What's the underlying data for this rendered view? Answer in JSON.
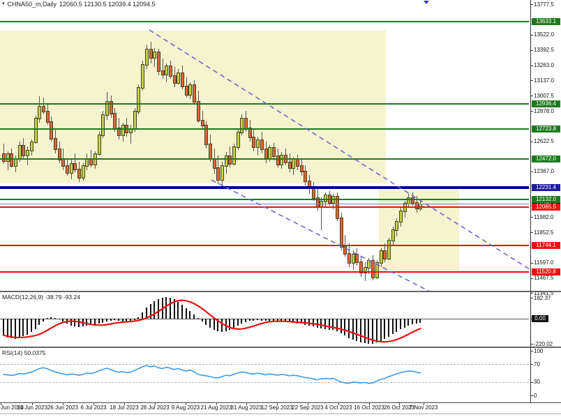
{
  "window": {
    "title_symbol": "CHNA50_m,Daily",
    "title_ohlc": "12060.5 12130.5 12039.4 12094.5"
  },
  "colors": {
    "bull": "#c3d045",
    "bear": "#e06438",
    "candle_border": "#44431f",
    "wick": "#555555",
    "level_green": "#1d7a1d",
    "level_red": "#f01010",
    "level_navy": "#00008b",
    "current_price_line": "#7b7bd4",
    "badge_blue": "#1c1c9e",
    "badge_black": "#111111",
    "zone": "#f6f3cf",
    "trend_dashed": "#6b6bcc",
    "macd_bar": "#111111",
    "macd_signal": "#ee1111",
    "rsi_line": "#3d9be9",
    "axis_line": "#333333",
    "separator": "#666666"
  },
  "chart_data": {
    "type": "candlestick",
    "symbol": "CHNA50_m",
    "timeframe": "Daily",
    "last_bar": {
      "open": 12060.5,
      "high": 12130.5,
      "low": 12039.4,
      "close": 12094.5
    },
    "x_labels": [
      "Jun 2023",
      "14 Jun 2023",
      "26 Jun 2023",
      "6 Jul 2023",
      "18 Jul 2023",
      "28 Jul 2023",
      "9 Aug 2023",
      "21 Aug 2023",
      "31 Aug 2023",
      "12 Sep 2023",
      "22 Sep 2023",
      "4 Oct 2023",
      "16 Oct 2023",
      "26 Oct 2023",
      "7 Nov 2023"
    ],
    "main_pane": {
      "y_ticks": [
        13777.5,
        13522.0,
        13392.5,
        13263.0,
        13137.0,
        13007.5,
        12878.0,
        12622.5,
        12367.0,
        11982.0,
        11852.5,
        11597.0,
        11467.5,
        11341.5
      ],
      "h_lines": [
        {
          "price": 13633.1,
          "kind": "green"
        },
        {
          "price": 12936.4,
          "kind": "green"
        },
        {
          "price": 12723.8,
          "kind": "green"
        },
        {
          "price": 12472.0,
          "kind": "green"
        },
        {
          "price": 12231.4,
          "kind": "navy"
        },
        {
          "price": 12132.0,
          "kind": "green"
        },
        {
          "price": 12094.5,
          "kind": "current"
        },
        {
          "price": 12065.5,
          "kind": "red"
        },
        {
          "price": 11744.1,
          "kind": "red"
        },
        {
          "price": 11520.8,
          "kind": "red"
        }
      ],
      "candles": [
        [
          12520,
          12600,
          12430,
          12460
        ],
        [
          12460,
          12540,
          12380,
          12520
        ],
        [
          12520,
          12560,
          12400,
          12420
        ],
        [
          12420,
          12500,
          12360,
          12480
        ],
        [
          12480,
          12620,
          12450,
          12590
        ],
        [
          12590,
          12650,
          12480,
          12510
        ],
        [
          12510,
          12580,
          12420,
          12550
        ],
        [
          12550,
          12640,
          12500,
          12620
        ],
        [
          12620,
          12840,
          12600,
          12820
        ],
        [
          12820,
          13000,
          12780,
          12920
        ],
        [
          12920,
          12990,
          12850,
          12880
        ],
        [
          12880,
          12940,
          12760,
          12790
        ],
        [
          12790,
          12830,
          12620,
          12650
        ],
        [
          12650,
          12720,
          12520,
          12560
        ],
        [
          12560,
          12620,
          12440,
          12470
        ],
        [
          12470,
          12560,
          12380,
          12420
        ],
        [
          12420,
          12480,
          12330,
          12360
        ],
        [
          12360,
          12470,
          12300,
          12440
        ],
        [
          12440,
          12520,
          12360,
          12390
        ],
        [
          12390,
          12450,
          12280,
          12320
        ],
        [
          12320,
          12440,
          12290,
          12420
        ],
        [
          12420,
          12520,
          12380,
          12480
        ],
        [
          12480,
          12550,
          12400,
          12430
        ],
        [
          12430,
          12540,
          12390,
          12520
        ],
        [
          12520,
          12700,
          12500,
          12680
        ],
        [
          12680,
          12880,
          12650,
          12850
        ],
        [
          12850,
          13040,
          12800,
          12960
        ],
        [
          12960,
          13010,
          12820,
          12860
        ],
        [
          12860,
          12900,
          12700,
          12740
        ],
        [
          12740,
          12820,
          12640,
          12680
        ],
        [
          12680,
          12780,
          12620,
          12760
        ],
        [
          12760,
          12820,
          12660,
          12700
        ],
        [
          12700,
          12760,
          12600,
          12730
        ],
        [
          12730,
          12900,
          12700,
          12880
        ],
        [
          12880,
          13100,
          12850,
          13080
        ],
        [
          13080,
          13300,
          13050,
          13270
        ],
        [
          13270,
          13440,
          13230,
          13400
        ],
        [
          13400,
          13460,
          13280,
          13330
        ],
        [
          13330,
          13410,
          13250,
          13380
        ],
        [
          13380,
          13400,
          13180,
          13220
        ],
        [
          13220,
          13320,
          13150,
          13190
        ],
        [
          13190,
          13280,
          13120,
          13260
        ],
        [
          13260,
          13300,
          13150,
          13180
        ],
        [
          13180,
          13250,
          13080,
          13120
        ],
        [
          13120,
          13230,
          13100,
          13200
        ],
        [
          13200,
          13260,
          13060,
          13090
        ],
        [
          13090,
          13160,
          12990,
          13020
        ],
        [
          13020,
          13120,
          12980,
          13100
        ],
        [
          13100,
          13140,
          12930,
          12960
        ],
        [
          12960,
          13050,
          12780,
          12800
        ],
        [
          12800,
          12880,
          12720,
          12760
        ],
        [
          12760,
          12790,
          12560,
          12600
        ],
        [
          12600,
          12680,
          12450,
          12480
        ],
        [
          12480,
          12560,
          12350,
          12400
        ],
        [
          12400,
          12500,
          12260,
          12300
        ],
        [
          12300,
          12450,
          12240,
          12420
        ],
        [
          12420,
          12530,
          12350,
          12500
        ],
        [
          12500,
          12580,
          12400,
          12440
        ],
        [
          12440,
          12600,
          12420,
          12580
        ],
        [
          12580,
          12720,
          12550,
          12700
        ],
        [
          12700,
          12850,
          12670,
          12820
        ],
        [
          12820,
          12880,
          12700,
          12740
        ],
        [
          12740,
          12800,
          12620,
          12660
        ],
        [
          12660,
          12720,
          12540,
          12580
        ],
        [
          12580,
          12660,
          12500,
          12640
        ],
        [
          12640,
          12700,
          12520,
          12560
        ],
        [
          12560,
          12620,
          12440,
          12480
        ],
        [
          12480,
          12590,
          12450,
          12570
        ],
        [
          12570,
          12610,
          12460,
          12500
        ],
        [
          12500,
          12560,
          12400,
          12430
        ],
        [
          12430,
          12530,
          12390,
          12510
        ],
        [
          12510,
          12560,
          12420,
          12450
        ],
        [
          12450,
          12520,
          12360,
          12400
        ],
        [
          12400,
          12490,
          12340,
          12470
        ],
        [
          12470,
          12510,
          12380,
          12420
        ],
        [
          12420,
          12470,
          12330,
          12370
        ],
        [
          12370,
          12420,
          12250,
          12290
        ],
        [
          12290,
          12340,
          12180,
          12230
        ],
        [
          12230,
          12280,
          12120,
          12150
        ],
        [
          12150,
          12220,
          12040,
          12080
        ],
        [
          12080,
          12150,
          11870,
          12120
        ],
        [
          12120,
          12190,
          12060,
          12170
        ],
        [
          12170,
          12200,
          12080,
          12110
        ],
        [
          12110,
          12180,
          12050,
          12160
        ],
        [
          12160,
          12190,
          11950,
          11980
        ],
        [
          11980,
          12020,
          11700,
          11740
        ],
        [
          11740,
          11830,
          11650,
          11680
        ],
        [
          11680,
          11760,
          11560,
          11600
        ],
        [
          11600,
          11700,
          11540,
          11670
        ],
        [
          11670,
          11720,
          11570,
          11610
        ],
        [
          11610,
          11650,
          11480,
          11520
        ],
        [
          11520,
          11600,
          11443,
          11560
        ],
        [
          11560,
          11640,
          11500,
          11620
        ],
        [
          11620,
          11660,
          11450,
          11480
        ],
        [
          11480,
          11620,
          11460,
          11600
        ],
        [
          11600,
          11720,
          11560,
          11700
        ],
        [
          11700,
          11760,
          11600,
          11640
        ],
        [
          11640,
          11810,
          11620,
          11790
        ],
        [
          11790,
          11900,
          11740,
          11880
        ],
        [
          11880,
          11970,
          11820,
          11950
        ],
        [
          11950,
          12060,
          11900,
          12040
        ],
        [
          12040,
          12120,
          11980,
          12100
        ],
        [
          12100,
          12180,
          12060,
          12150
        ],
        [
          12150,
          12190,
          12080,
          12110
        ],
        [
          12110,
          12160,
          12020,
          12060
        ],
        [
          12060.5,
          12130.5,
          12039.4,
          12094.5
        ]
      ]
    },
    "trend_channel": {
      "style": "dashed",
      "lines": [
        [
          214,
          43,
          762,
          388
        ],
        [
          303,
          258,
          616,
          418
        ]
      ]
    },
    "highlight_zones": [
      [
        0,
        44,
        553,
        219
      ],
      [
        543,
        272,
        115,
        116
      ]
    ],
    "macd_pane": {
      "label": "MACD(12,26,9) -38.79 -93.24",
      "macd": -38.79,
      "signal": -93.24,
      "y_ticks": [
        {
          "value": 182.37,
          "label": "182.37",
          "badge": false
        },
        {
          "value": 0,
          "label": "0.00",
          "badge": true
        },
        {
          "value": -220.02,
          "label": "-220.02",
          "badge": false
        }
      ],
      "values": [
        -145,
        -162,
        -172,
        -175,
        -168,
        -155,
        -138,
        -118,
        -90,
        -55,
        -25,
        5,
        12,
        8,
        -5,
        -25,
        -45,
        -60,
        -68,
        -70,
        -65,
        -58,
        -52,
        -48,
        -42,
        -35,
        -25,
        -18,
        -15,
        -18,
        -22,
        -25,
        -22,
        -12,
        15,
        55,
        95,
        130,
        155,
        172,
        182,
        186,
        180,
        168,
        148,
        122,
        92,
        65,
        38,
        8,
        -25,
        -55,
        -80,
        -98,
        -110,
        -116,
        -112,
        -100,
        -82,
        -62,
        -42,
        -28,
        -20,
        -16,
        -14,
        -16,
        -20,
        -24,
        -27,
        -30,
        -32,
        -31,
        -33,
        -36,
        -40,
        -45,
        -52,
        -60,
        -68,
        -78,
        -88,
        -94,
        -97,
        -100,
        -110,
        -128,
        -148,
        -168,
        -183,
        -196,
        -207,
        -215,
        -220,
        -217,
        -209,
        -196,
        -178,
        -158,
        -136,
        -114,
        -94,
        -76,
        -61,
        -50,
        -43,
        -38.79
      ]
    },
    "rsi_pane": {
      "label": "RSI(14) 50.0375",
      "value": 50.0375,
      "levels": [
        {
          "value": 100,
          "label": "100",
          "dashed": false
        },
        {
          "value": 70,
          "label": "70",
          "dashed": true
        },
        {
          "value": 30,
          "label": "30",
          "dashed": true
        },
        {
          "value": 0,
          "label": "0",
          "dashed": false
        }
      ],
      "values": [
        47,
        46,
        45,
        46,
        49,
        48,
        50,
        52,
        56,
        60,
        62,
        60,
        56,
        53,
        50,
        48,
        46,
        48,
        47,
        45,
        47,
        50,
        49,
        51,
        55,
        58,
        61,
        58,
        54,
        52,
        53,
        51,
        52,
        56,
        60,
        64,
        67,
        64,
        66,
        62,
        60,
        63,
        61,
        58,
        60,
        57,
        54,
        57,
        53,
        47,
        45,
        44,
        42,
        40,
        39,
        42,
        45,
        44,
        47,
        50,
        53,
        51,
        49,
        48,
        50,
        48,
        46,
        48,
        47,
        45,
        47,
        46,
        44,
        45,
        44,
        42,
        40,
        39,
        37,
        35,
        37,
        38,
        37,
        38,
        34,
        30,
        28,
        27,
        30,
        29,
        28,
        29,
        27,
        28,
        32,
        36,
        38,
        42,
        45,
        48,
        51,
        53,
        55,
        54,
        52,
        50
      ]
    }
  }
}
